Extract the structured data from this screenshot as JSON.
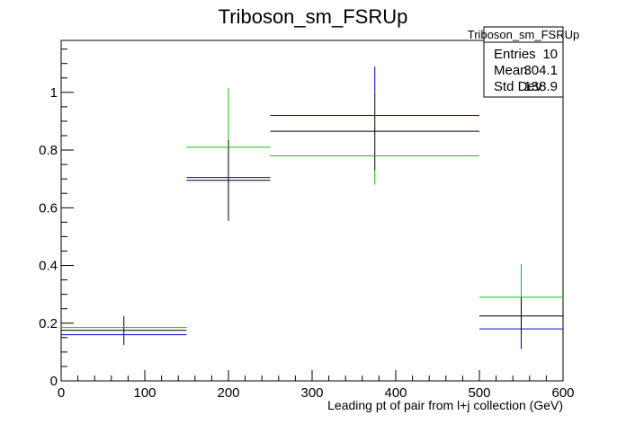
{
  "chart_data": {
    "type": "scatter",
    "title": "Triboson_sm_FSRUp",
    "xlabel": "Leading pt of pair from l+j collection (GeV)",
    "ylabel": "",
    "xlim": [
      0,
      600
    ],
    "ylim": [
      0,
      1.18
    ],
    "x_ticks": [
      "0",
      "100",
      "200",
      "300",
      "400",
      "500",
      "600"
    ],
    "y_ticks": [
      "0",
      "0.2",
      "0.4",
      "0.6",
      "0.8",
      "1"
    ],
    "legend_placement": "top-right",
    "series": [
      {
        "color": "#000000",
        "points": [
          {
            "x": 75,
            "xlow": 0,
            "xhigh": 150,
            "y": 0.175,
            "ylow": 0.125,
            "yhigh": 0.225
          },
          {
            "x": 200,
            "xlow": 150,
            "xhigh": 250,
            "y": 0.695,
            "ylow": 0.555,
            "yhigh": 0.835
          },
          {
            "x": 375,
            "xlow": 250,
            "xhigh": 500,
            "y": 0.865,
            "ylow": 0.73,
            "yhigh": 1.0
          },
          {
            "x": 550,
            "xlow": 500,
            "xhigh": 600,
            "y": 0.225,
            "ylow": 0.16,
            "yhigh": 0.29
          }
        ]
      },
      {
        "color": "#00cc00",
        "points": [
          {
            "x": 75,
            "xlow": 0,
            "xhigh": 150,
            "y": 0.185,
            "ylow": 0.185,
            "yhigh": 0.185
          },
          {
            "x": 200,
            "xlow": 150,
            "xhigh": 250,
            "y": 0.81,
            "ylow": 0.835,
            "yhigh": 1.015
          },
          {
            "x": 375,
            "xlow": 250,
            "xhigh": 500,
            "y": 0.78,
            "ylow": 0.68,
            "yhigh": 0.73
          },
          {
            "x": 550,
            "xlow": 500,
            "xhigh": 600,
            "y": 0.29,
            "ylow": 0.29,
            "yhigh": 0.405
          }
        ]
      },
      {
        "color": "#0000cc",
        "points": [
          {
            "x": 75,
            "xlow": 0,
            "xhigh": 150,
            "y": 0.16,
            "ylow": 0.16,
            "yhigh": 0.16
          },
          {
            "x": 200,
            "xlow": 150,
            "xhigh": 250,
            "y": 0.705,
            "ylow": 0.705,
            "yhigh": 0.705
          },
          {
            "x": 375,
            "xlow": 250,
            "xhigh": 500,
            "y": 0.92,
            "ylow": 1.0,
            "yhigh": 1.09
          },
          {
            "x": 550,
            "xlow": 500,
            "xhigh": 600,
            "y": 0.18,
            "ylow": 0.11,
            "yhigh": 0.16
          }
        ]
      }
    ]
  },
  "stats": {
    "title": "Triboson_sm_FSRUp",
    "rows": [
      {
        "label": "Entries",
        "value": "10"
      },
      {
        "label": "Mean",
        "value": "304.1"
      },
      {
        "label": "Std Dev",
        "value": "138.9"
      }
    ]
  }
}
